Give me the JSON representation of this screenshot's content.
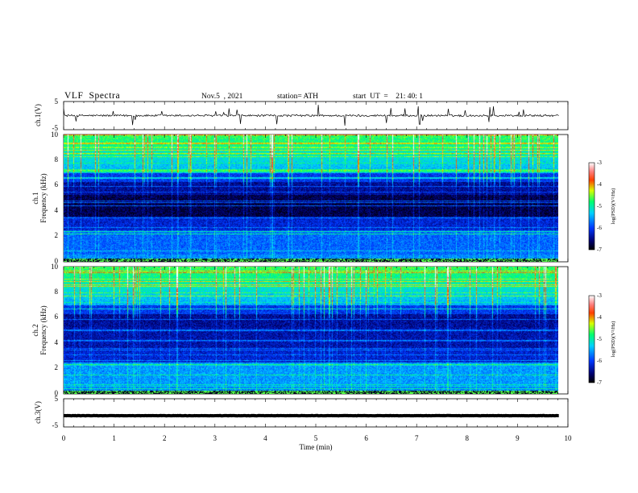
{
  "header": {
    "title": "VLF  Spectra",
    "date": "Nov.5  , 2021",
    "station": "station= ATH",
    "start": "start  UT  =    21: 40: 1"
  },
  "chart_data": [
    {
      "type": "line",
      "ylabel": "ch.1(V)",
      "ylim": [
        -5,
        5
      ],
      "yticks": [
        "5",
        "-5"
      ],
      "xlim": [
        0,
        10
      ],
      "level": 0.0,
      "noise": 0.35
    },
    {
      "type": "heatmap",
      "ylabel": "ch.1\nFrequency  (kHz)",
      "ylim": [
        0,
        10
      ],
      "yticks": [
        "0",
        "2",
        "4",
        "6",
        "8",
        "10"
      ],
      "xlim": [
        0,
        10
      ],
      "colorbar": {
        "label": "log(PSD)(V²/Hz)",
        "range": [
          -7,
          -3
        ],
        "ticks": [
          "-3",
          "-4",
          "-5",
          "-6",
          "-7"
        ]
      }
    },
    {
      "type": "heatmap",
      "ylabel": "ch.2\nFrequency  (kHz)",
      "ylim": [
        0,
        10
      ],
      "yticks": [
        "0",
        "2",
        "4",
        "6",
        "8",
        "10"
      ],
      "xlim": [
        0,
        10
      ],
      "colorbar": {
        "label": "log(PSD)(V²/Hz)",
        "range": [
          -7,
          -3
        ],
        "ticks": [
          "-3",
          "-4",
          "-5",
          "-6",
          "-7"
        ]
      }
    },
    {
      "type": "line",
      "ylabel": "ch.3(V)",
      "ylim": [
        -5,
        5
      ],
      "yticks": [
        "5",
        "-5"
      ],
      "xlim": [
        0,
        10
      ],
      "level": -1.0,
      "noise": 0.05,
      "xlabel": "Time  (min)",
      "xticks": [
        "0",
        "1",
        "2",
        "3",
        "4",
        "5",
        "6",
        "7",
        "8",
        "9",
        "10"
      ]
    }
  ]
}
